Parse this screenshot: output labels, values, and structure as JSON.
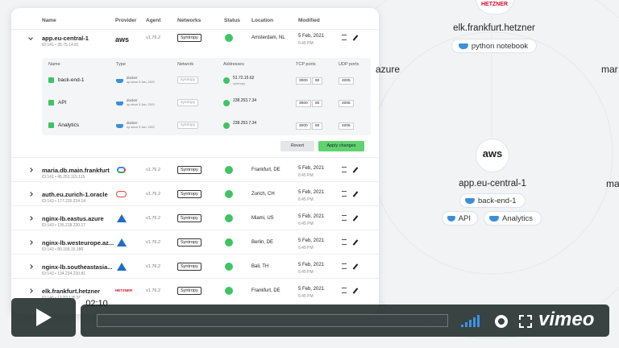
{
  "table": {
    "columns": [
      "Name",
      "Provider",
      "Agent",
      "Networks",
      "Status",
      "Location",
      "Modified"
    ],
    "rows": [
      {
        "name": "app.eu-central-1",
        "meta": "ID:141 • 35.75.14.81",
        "provider": "aws",
        "agent": "v1.76.2",
        "network": "Syntropy",
        "location": "Amsterdam, NL",
        "date": "5 Feb, 2021",
        "time": "6:45 PM"
      },
      {
        "name": "maria.db.main.frankfurt",
        "meta": "ID:141 • 45.253.115.115",
        "agent": "v1.76.2",
        "network": "Syntropy",
        "location": "Frankfurt, DE",
        "date": "5 Feb, 2021",
        "time": "6:45 PM"
      },
      {
        "name": "auth.eu.zurich-1.oracle",
        "meta": "ID:143 • 177.226.224.14",
        "agent": "v1.76.2",
        "network": "Syntropy",
        "location": "Zurich, CH",
        "date": "5 Feb, 2021",
        "time": "6:45 PM"
      },
      {
        "name": "nginx-lb.eastus.azure",
        "meta": "ID:143 • 135.218.220.17",
        "agent": "v1.76.2",
        "network": "Syntropy",
        "location": "Miami, US",
        "date": "5 Feb, 2021",
        "time": "6:45 PM"
      },
      {
        "name": "nginx-lb.westeurope.az...",
        "meta": "ID:143 • 80.156.15.186",
        "agent": "v1.76.2",
        "network": "Syntropy",
        "location": "Berlin, DE",
        "date": "5 Feb, 2021",
        "time": "6:45 PM"
      },
      {
        "name": "nginx-lb.southeastasia...",
        "meta": "ID:143 • 134.234.210.81",
        "agent": "v1.76.2",
        "network": "Syntropy",
        "location": "Bali, TH",
        "date": "5 Feb, 2021",
        "time": "6:45 PM"
      },
      {
        "name": "elk.frankfurt.hetzner",
        "meta": "ID:146 • 12.83.135.56",
        "provider": "HETZNER",
        "agent": "v1.76.2",
        "network": "Syntropy",
        "location": "Frankfurt, DE",
        "date": "5 Feb, 2021",
        "time": "6:45 PM"
      }
    ],
    "expanded": {
      "columns": [
        "Name",
        "Type",
        "Network",
        "Addresses",
        "TCP ports",
        "UDP ports"
      ],
      "rows": [
        {
          "name": "back-end-1",
          "type": "docker",
          "type_note": "up since 5 Jan, 2021",
          "network": "syntropy",
          "address": "51.72.15.62",
          "address_note": "syntropy",
          "tcp": [
            "3000",
            "80"
          ],
          "udp": "4005"
        },
        {
          "name": "API",
          "type": "docker",
          "type_note": "up since 5 Jan, 2021",
          "network": "syntropy",
          "address": "238.253.7.34",
          "tcp": [
            "3000",
            "80"
          ],
          "udp": "4005"
        },
        {
          "name": "Analytics",
          "type": "docker",
          "type_note": "up since 5 Jan, 2021",
          "network": "syntropy",
          "address": "238.253.7.34",
          "tcp": [
            "3000",
            "80"
          ],
          "udp": "4005"
        }
      ],
      "buttons": [
        "Revert",
        "Apply changes"
      ]
    }
  },
  "graph": {
    "hetzner_logo": "HETZNER",
    "hetzner_node": "elk.frankfurt.hetzner",
    "hetzner_service": "python notebook",
    "azure_label": "azure",
    "partial_1": "mar",
    "partial_2": "ma",
    "aws_logo": "aws",
    "aws_node": "app.eu-central-1",
    "aws_services": [
      "back-end-1",
      "API",
      "Analytics"
    ]
  },
  "player": {
    "time": "02:10",
    "brand": "vimeo"
  }
}
